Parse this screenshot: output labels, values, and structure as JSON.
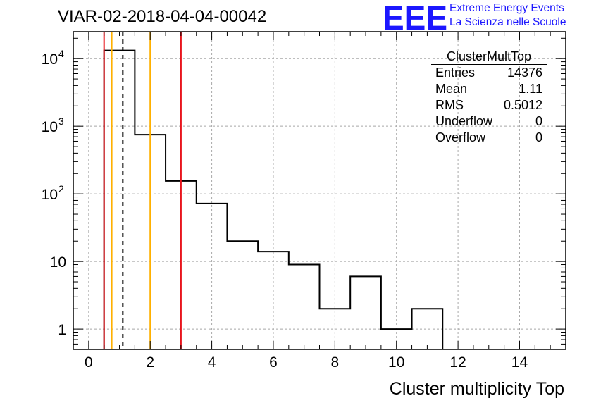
{
  "title": "VIAR-02-2018-04-04-00042",
  "logo": {
    "letters": "EEE",
    "line1": "Extreme Energy Events",
    "line2": "La Scienza nelle Scuole",
    "color": "#1c17ff"
  },
  "stats": {
    "name": "ClusterMultTop",
    "rows": [
      {
        "label": "Entries",
        "value": "14376"
      },
      {
        "label": "Mean",
        "value": "1.11"
      },
      {
        "label": "RMS",
        "value": "0.5012"
      },
      {
        "label": "Underflow",
        "value": "0"
      },
      {
        "label": "Overflow",
        "value": "0"
      }
    ]
  },
  "chart_data": {
    "type": "histogram",
    "title": "VIAR-02-2018-04-04-00042",
    "xlabel": "Cluster multiplicity Top",
    "ylabel": "",
    "xlim": [
      -0.5,
      15.5
    ],
    "ylim": [
      0.5,
      25000
    ],
    "yscale": "log",
    "grid": true,
    "bin_width": 1,
    "bins": [
      {
        "x": 1,
        "count": 13200
      },
      {
        "x": 2,
        "count": 750
      },
      {
        "x": 3,
        "count": 155
      },
      {
        "x": 4,
        "count": 72
      },
      {
        "x": 5,
        "count": 20
      },
      {
        "x": 6,
        "count": 14
      },
      {
        "x": 7,
        "count": 9
      },
      {
        "x": 8,
        "count": 2
      },
      {
        "x": 9,
        "count": 6
      },
      {
        "x": 10,
        "count": 1
      },
      {
        "x": 11,
        "count": 2
      }
    ],
    "x_ticks": [
      0,
      2,
      4,
      6,
      8,
      10,
      12,
      14
    ],
    "x_tick_labels": [
      "0",
      "2",
      "4",
      "6",
      "8",
      "10",
      "12",
      "14"
    ],
    "y_ticks": [
      {
        "value": 1,
        "base": "1",
        "exp": ""
      },
      {
        "value": 10,
        "base": "10",
        "exp": ""
      },
      {
        "value": 100,
        "base": "10",
        "exp": "2"
      },
      {
        "value": 1000,
        "base": "10",
        "exp": "3"
      },
      {
        "value": 10000,
        "base": "10",
        "exp": "4"
      }
    ],
    "reference_lines": [
      {
        "x": 0.5,
        "color": "#e8141c",
        "style": "solid"
      },
      {
        "x": 0.75,
        "color": "#ffb000",
        "style": "solid"
      },
      {
        "x": 1.11,
        "color": "#000000",
        "style": "dashed"
      },
      {
        "x": 2.0,
        "color": "#ffb000",
        "style": "solid"
      },
      {
        "x": 3.0,
        "color": "#e8141c",
        "style": "solid"
      }
    ],
    "legend_placement": "top-right"
  }
}
